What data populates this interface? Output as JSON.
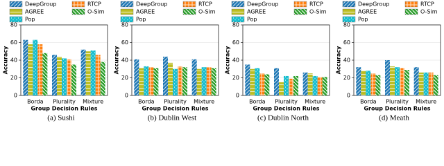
{
  "chart_data": [
    {
      "type": "bar",
      "caption": "(a) Sushi",
      "ylabel": "Accuracy",
      "xlabel": "Group Decision Rules",
      "categories": [
        "Borda",
        "Plurality",
        "Mixture"
      ],
      "ylim": [
        0,
        80
      ],
      "yticks": [
        0,
        20,
        40,
        60,
        80
      ],
      "grid": true,
      "legend": "top",
      "series": [
        {
          "name": "DeepGroup",
          "color": "#1f77b4",
          "values": [
            63,
            46,
            52
          ]
        },
        {
          "name": "AGREE",
          "color": "#bcbd22",
          "values": [
            58,
            44,
            50
          ]
        },
        {
          "name": "Pop",
          "color": "#17becf",
          "values": [
            63,
            42,
            51
          ]
        },
        {
          "name": "RTCP",
          "color": "#ff7f0e",
          "values": [
            58,
            41,
            46
          ]
        },
        {
          "name": "O-Sim",
          "color": "#2ca02c",
          "values": [
            48,
            35,
            38
          ]
        }
      ]
    },
    {
      "type": "bar",
      "caption": "(b) Dublin West",
      "ylabel": "Accuracy",
      "xlabel": "Group Decision Rules",
      "categories": [
        "Borda",
        "Plurality",
        "Mixture"
      ],
      "ylim": [
        0,
        80
      ],
      "yticks": [
        0,
        20,
        40,
        60,
        80
      ],
      "grid": true,
      "legend": "top",
      "series": [
        {
          "name": "DeepGroup",
          "color": "#1f77b4",
          "values": [
            41,
            44,
            41
          ]
        },
        {
          "name": "AGREE",
          "color": "#bcbd22",
          "values": [
            31,
            37,
            30
          ]
        },
        {
          "name": "Pop",
          "color": "#17becf",
          "values": [
            33,
            30,
            32
          ]
        },
        {
          "name": "RTCP",
          "color": "#ff7f0e",
          "values": [
            32,
            33,
            32
          ]
        },
        {
          "name": "O-Sim",
          "color": "#2ca02c",
          "values": [
            31,
            32,
            31
          ]
        }
      ]
    },
    {
      "type": "bar",
      "caption": "(c) Dublin North",
      "ylabel": "Accuracy",
      "xlabel": "Group Decision Rules",
      "categories": [
        "Borda",
        "Plurality",
        "Mixture"
      ],
      "ylim": [
        0,
        80
      ],
      "yticks": [
        0,
        20,
        40,
        60,
        80
      ],
      "grid": true,
      "legend": "top",
      "series": [
        {
          "name": "DeepGroup",
          "color": "#1f77b4",
          "values": [
            35,
            31,
            26
          ]
        },
        {
          "name": "AGREE",
          "color": "#bcbd22",
          "values": [
            30,
            15,
            25
          ]
        },
        {
          "name": "Pop",
          "color": "#17becf",
          "values": [
            31,
            22,
            22
          ]
        },
        {
          "name": "RTCP",
          "color": "#ff7f0e",
          "values": [
            25,
            19,
            21
          ]
        },
        {
          "name": "O-Sim",
          "color": "#2ca02c",
          "values": [
            24,
            22,
            21
          ]
        }
      ]
    },
    {
      "type": "bar",
      "caption": "(d) Meath",
      "ylabel": "Accuracy",
      "xlabel": "Group Decision Rules",
      "categories": [
        "Borda",
        "Plurality",
        "Mixture"
      ],
      "ylim": [
        0,
        80
      ],
      "yticks": [
        0,
        20,
        40,
        60,
        80
      ],
      "grid": true,
      "legend": "top",
      "series": [
        {
          "name": "DeepGroup",
          "color": "#1f77b4",
          "values": [
            32,
            40,
            32
          ]
        },
        {
          "name": "AGREE",
          "color": "#bcbd22",
          "values": [
            28,
            33,
            26
          ]
        },
        {
          "name": "Pop",
          "color": "#17becf",
          "values": [
            28,
            32,
            26
          ]
        },
        {
          "name": "RTCP",
          "color": "#ff7f0e",
          "values": [
            25,
            31,
            26
          ]
        },
        {
          "name": "O-Sim",
          "color": "#2ca02c",
          "values": [
            23,
            29,
            23
          ]
        }
      ]
    }
  ]
}
